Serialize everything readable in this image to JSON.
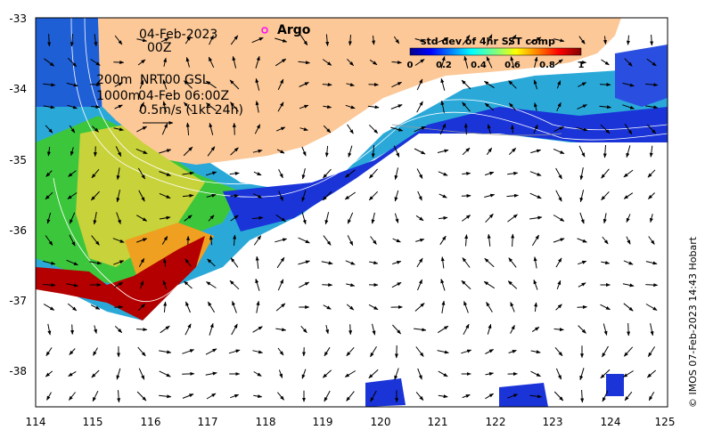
{
  "map": {
    "date": "04-Feb-2023",
    "hour": "00Z",
    "contour_200": "200m",
    "contour_1000": "1000m",
    "product": "NRT00 GSL",
    "product_time": "04-Feb 06:00Z",
    "scale_arrow_label": "0.5m/s (1kt 24h)",
    "argo_label": "Argo",
    "credit": "© IMOS 07-Feb-2023 14:43 Hobart",
    "land_color": "#fcc898",
    "argo_marker_color": "#ff00ff"
  },
  "axes": {
    "lon_ticks": [
      "114",
      "115",
      "116",
      "117",
      "118",
      "119",
      "120",
      "121",
      "122",
      "123",
      "124",
      "125"
    ],
    "lat_ticks": [
      "-33",
      "-34",
      "-35",
      "-36",
      "-37",
      "-38"
    ]
  },
  "colorbar": {
    "title": "std dev of 4hr SST comp",
    "ticks": [
      "0",
      "0.2",
      "0.4",
      "0.6",
      "0.8",
      "1"
    ],
    "range": [
      0,
      1
    ],
    "colormap": "jet"
  }
}
